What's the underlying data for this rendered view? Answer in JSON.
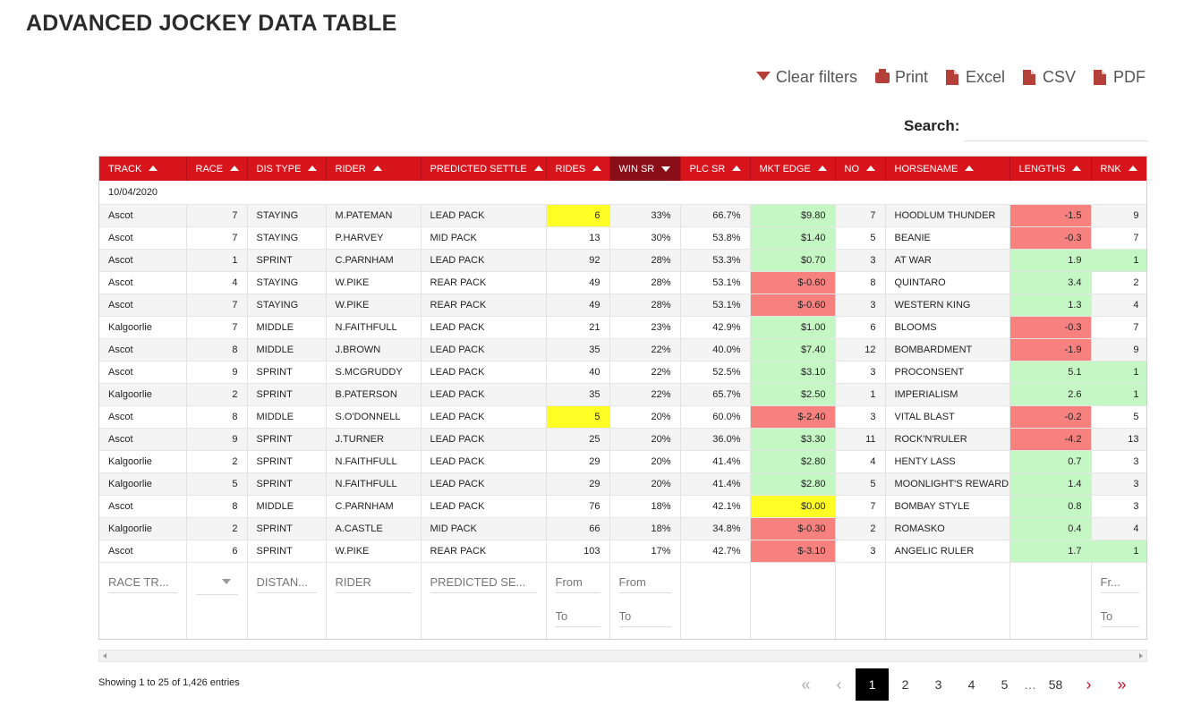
{
  "title": "ADVANCED JOCKEY DATA TABLE",
  "toolbar": {
    "clear_filters": "Clear filters",
    "print": "Print",
    "excel": "Excel",
    "csv": "CSV",
    "pdf": "PDF"
  },
  "search": {
    "label": "Search:",
    "value": ""
  },
  "columns": [
    "TRACK",
    "RACE",
    "DIS TYPE",
    "RIDER",
    "PREDICTED SETTLE",
    "RIDES",
    "WIN SR",
    "PLC SR",
    "MKT EDGE",
    "NO",
    "HORSENAME",
    "LENGTHS",
    "RNK"
  ],
  "sorted_column": "WIN SR",
  "group_label": "10/04/2020",
  "rows": [
    [
      "Ascot",
      "7",
      "STAYING",
      "M.PATEMAN",
      "LEAD PACK",
      "6",
      "33%",
      "66.7%",
      "$9.80",
      "7",
      "HOODLUM THUNDER",
      "-1.5",
      "9"
    ],
    [
      "Ascot",
      "7",
      "STAYING",
      "P.HARVEY",
      "MID PACK",
      "13",
      "30%",
      "53.8%",
      "$1.40",
      "5",
      "BEANIE",
      "-0.3",
      "7"
    ],
    [
      "Ascot",
      "1",
      "SPRINT",
      "C.PARNHAM",
      "LEAD PACK",
      "92",
      "28%",
      "53.3%",
      "$0.70",
      "3",
      "AT WAR",
      "1.9",
      "1"
    ],
    [
      "Ascot",
      "4",
      "STAYING",
      "W.PIKE",
      "REAR PACK",
      "49",
      "28%",
      "53.1%",
      "$-0.60",
      "8",
      "QUINTARO",
      "3.4",
      "2"
    ],
    [
      "Ascot",
      "7",
      "STAYING",
      "W.PIKE",
      "REAR PACK",
      "49",
      "28%",
      "53.1%",
      "$-0.60",
      "3",
      "WESTERN KING",
      "1.3",
      "4"
    ],
    [
      "Kalgoorlie",
      "7",
      "MIDDLE",
      "N.FAITHFULL",
      "LEAD PACK",
      "21",
      "23%",
      "42.9%",
      "$1.00",
      "6",
      "BLOOMS",
      "-0.3",
      "7"
    ],
    [
      "Ascot",
      "8",
      "MIDDLE",
      "J.BROWN",
      "LEAD PACK",
      "35",
      "22%",
      "40.0%",
      "$7.40",
      "12",
      "BOMBARDMENT",
      "-1.9",
      "9"
    ],
    [
      "Ascot",
      "9",
      "SPRINT",
      "S.MCGRUDDY",
      "LEAD PACK",
      "40",
      "22%",
      "52.5%",
      "$3.10",
      "3",
      "PROCONSENT",
      "5.1",
      "1"
    ],
    [
      "Kalgoorlie",
      "2",
      "SPRINT",
      "B.PATERSON",
      "LEAD PACK",
      "35",
      "22%",
      "65.7%",
      "$2.50",
      "1",
      "IMPERIALISM",
      "2.6",
      "1"
    ],
    [
      "Ascot",
      "8",
      "MIDDLE",
      "S.O'DONNELL",
      "LEAD PACK",
      "5",
      "20%",
      "60.0%",
      "$-2.40",
      "3",
      "VITAL BLAST",
      "-0.2",
      "5"
    ],
    [
      "Ascot",
      "9",
      "SPRINT",
      "J.TURNER",
      "LEAD PACK",
      "25",
      "20%",
      "36.0%",
      "$3.30",
      "11",
      "ROCK'N'RULER",
      "-4.2",
      "13"
    ],
    [
      "Kalgoorlie",
      "2",
      "SPRINT",
      "N.FAITHFULL",
      "LEAD PACK",
      "29",
      "20%",
      "41.4%",
      "$2.80",
      "4",
      "HENTY LASS",
      "0.7",
      "3"
    ],
    [
      "Kalgoorlie",
      "5",
      "SPRINT",
      "N.FAITHFULL",
      "LEAD PACK",
      "29",
      "20%",
      "41.4%",
      "$2.80",
      "5",
      "MOONLIGHT'S REWARD",
      "1.4",
      "3"
    ],
    [
      "Ascot",
      "8",
      "MIDDLE",
      "C.PARNHAM",
      "LEAD PACK",
      "76",
      "18%",
      "42.1%",
      "$0.00",
      "7",
      "BOMBAY STYLE",
      "0.8",
      "3"
    ],
    [
      "Kalgoorlie",
      "2",
      "SPRINT",
      "A.CASTLE",
      "MID PACK",
      "66",
      "18%",
      "34.8%",
      "$-0.30",
      "2",
      "ROMASKO",
      "0.4",
      "4"
    ],
    [
      "Ascot",
      "6",
      "SPRINT",
      "W.PIKE",
      "REAR PACK",
      "103",
      "17%",
      "42.7%",
      "$-3.10",
      "3",
      "ANGELIC RULER",
      "1.7",
      "1"
    ]
  ],
  "highlights": {
    "rides_yellow_rows": [
      0,
      9
    ],
    "mkt_edge": [
      "green",
      "green",
      "green",
      "red",
      "red",
      "green",
      "green",
      "green",
      "green",
      "red",
      "green",
      "green",
      "green",
      "yellow",
      "red",
      "red"
    ],
    "lengths": [
      "red",
      "red",
      "green",
      "green",
      "green",
      "red",
      "red",
      "green",
      "green",
      "red",
      "red",
      "green",
      "green",
      "green",
      "green",
      "green"
    ],
    "rnk_green_rows": [
      2,
      7,
      8,
      15
    ]
  },
  "colors": {
    "header_red": "#d8141c",
    "sorted_header": "#8a0e18",
    "yellow": "#ffff26",
    "green": "#c5f7c5",
    "red": "#f7817f"
  },
  "filters": {
    "track": "RACE TR...",
    "distance": "DISTAN...",
    "rider": "RIDER",
    "predicted_settle": "PREDICTED SE...",
    "from": "From",
    "to": "To",
    "rnk_from": "Fr...",
    "rnk_to": "To"
  },
  "info": "Showing 1 to 25 of 1,426 entries",
  "pagination": {
    "pages": [
      "1",
      "2",
      "3",
      "4",
      "5"
    ],
    "ellipsis": "…",
    "last": "58",
    "current": "1"
  }
}
